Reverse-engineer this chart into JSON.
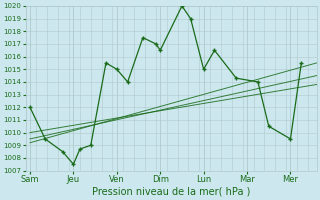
{
  "xlabel": "Pression niveau de la mer( hPa )",
  "bg_color": "#cce8ee",
  "grid_color": "#b0c8cc",
  "line_color": "#1a6b1a",
  "ylim": [
    1007,
    1020
  ],
  "yticks": [
    1007,
    1008,
    1009,
    1010,
    1011,
    1012,
    1013,
    1014,
    1015,
    1016,
    1017,
    1018,
    1019,
    1020
  ],
  "xtick_labels": [
    "Sam",
    "Jeu",
    "Ven",
    "Dim",
    "Lun",
    "Mar",
    "Mer"
  ],
  "xtick_positions": [
    0,
    2,
    4,
    6,
    8,
    10,
    12
  ],
  "xlim": [
    -0.2,
    13.2
  ],
  "main_x": [
    0,
    0.7,
    1.5,
    2.0,
    2.3,
    2.8,
    3.5,
    4.0,
    4.5,
    5.2,
    5.8,
    6.0,
    7.0,
    7.4,
    8.0,
    8.5,
    9.5,
    10.5,
    11.0,
    12.0,
    12.5
  ],
  "main_y": [
    1012,
    1009.5,
    1008.5,
    1007.5,
    1008.7,
    1009.0,
    1015.5,
    1015.0,
    1014.0,
    1017.5,
    1017.0,
    1016.5,
    1020.0,
    1019.0,
    1015.0,
    1016.5,
    1014.3,
    1014.0,
    1010.5,
    1009.5,
    1015.5
  ],
  "trend_lines": [
    {
      "x": [
        0,
        13.2
      ],
      "y": [
        1009.2,
        1015.5
      ]
    },
    {
      "x": [
        0,
        13.2
      ],
      "y": [
        1009.5,
        1014.5
      ]
    },
    {
      "x": [
        0,
        13.2
      ],
      "y": [
        1010.0,
        1013.8
      ]
    }
  ],
  "xlabel_fontsize": 7,
  "ytick_fontsize": 5,
  "xtick_fontsize": 6
}
